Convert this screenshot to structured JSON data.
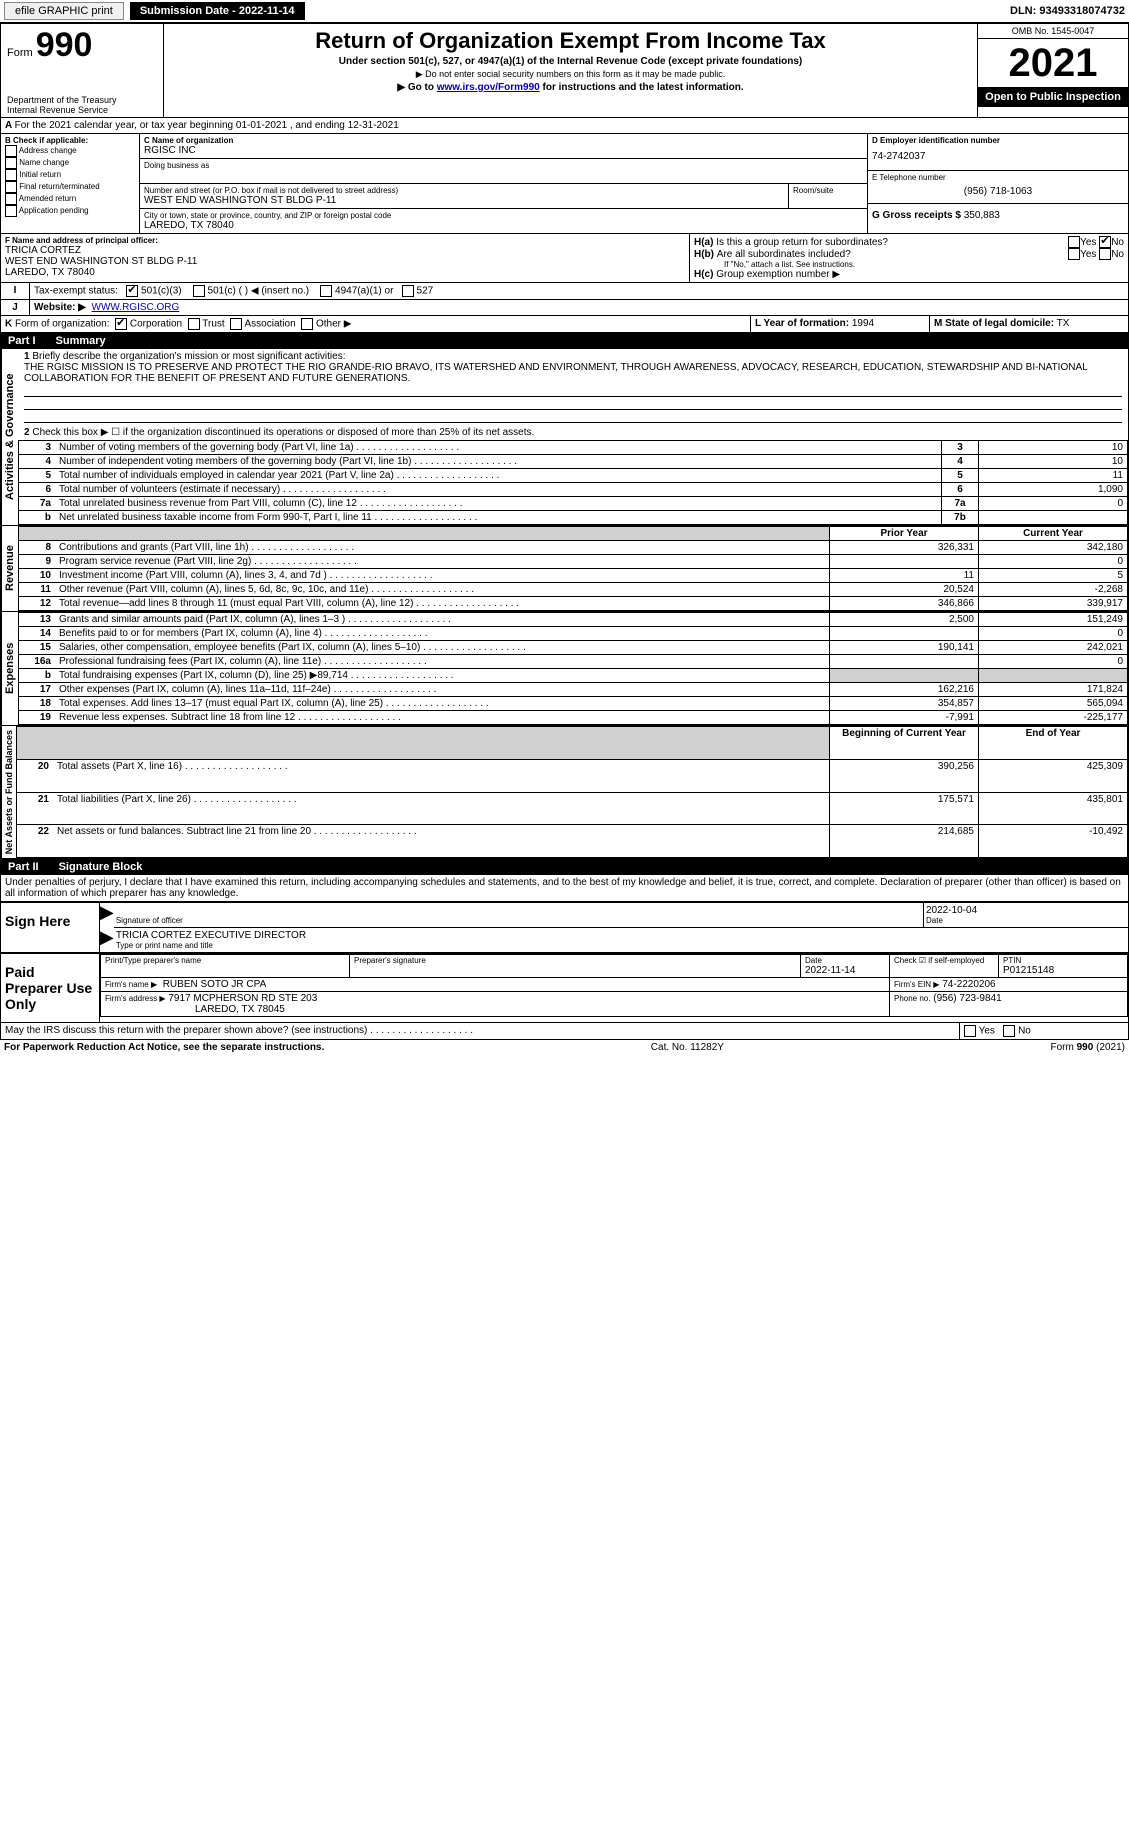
{
  "topbar": {
    "efile": "efile GRAPHIC print",
    "submission_label": "Submission Date - 2022-11-14",
    "dln_label": "DLN: 93493318074732"
  },
  "header": {
    "form_label": "Form",
    "form_num": "990",
    "dept": "Department of the Treasury",
    "irs": "Internal Revenue Service",
    "title": "Return of Organization Exempt From Income Tax",
    "sub1": "Under section 501(c), 527, or 4947(a)(1) of the Internal Revenue Code (except private foundations)",
    "sub2": "▶ Do not enter social security numbers on this form as it may be made public.",
    "sub3_pre": "▶ Go to ",
    "sub3_link": "www.irs.gov/Form990",
    "sub3_post": " for instructions and the latest information.",
    "omb": "OMB No. 1545-0047",
    "year": "2021",
    "open": "Open to Public Inspection"
  },
  "A": {
    "text": "For the 2021 calendar year, or tax year beginning 01-01-2021    , and ending 12-31-2021"
  },
  "B": {
    "label": "B Check if applicable:",
    "opts": [
      "Address change",
      "Name change",
      "Initial return",
      "Final return/terminated",
      "Amended return",
      "Application pending"
    ]
  },
  "C": {
    "name_lbl": "C Name of organization",
    "name": "RGISC INC",
    "dba_lbl": "Doing business as",
    "street_lbl": "Number and street (or P.O. box if mail is not delivered to street address)",
    "room_lbl": "Room/suite",
    "street": "WEST END WASHINGTON ST BLDG P-11",
    "city_lbl": "City or town, state or province, country, and ZIP or foreign postal code",
    "city": "LAREDO, TX  78040"
  },
  "D": {
    "label": "D Employer identification number",
    "val": "74-2742037"
  },
  "E": {
    "label": "E Telephone number",
    "val": "(956) 718-1063"
  },
  "G": {
    "label": "G Gross receipts $",
    "val": "350,883"
  },
  "F": {
    "label": "F Name and address of principal officer:",
    "name": "TRICIA CORTEZ",
    "addr1": "WEST END WASHINGTON ST BLDG P-11",
    "addr2": "LAREDO, TX  78040"
  },
  "H": {
    "a": "Is this a group return for subordinates?",
    "b": "Are all subordinates included?",
    "b_note": "If \"No,\" attach a list. See instructions.",
    "c": "Group exemption number ▶",
    "yes": "Yes",
    "no": "No"
  },
  "I": {
    "label": "Tax-exempt status:",
    "o1": "501(c)(3)",
    "o2": "501(c) (  ) ◀ (insert no.)",
    "o3": "4947(a)(1) or",
    "o4": "527"
  },
  "J": {
    "label": "Website: ▶",
    "val": "WWW.RGISC.ORG"
  },
  "K": {
    "label": "Form of organization:",
    "opts": [
      "Corporation",
      "Trust",
      "Association",
      "Other ▶"
    ]
  },
  "L": {
    "label": "L Year of formation:",
    "val": "1994"
  },
  "M": {
    "label": "M State of legal domicile:",
    "val": "TX"
  },
  "part1": {
    "title": "Part I",
    "name": "Summary",
    "q1": "Briefly describe the organization's mission or most significant activities:",
    "mission": "THE RGISC MISSION IS TO PRESERVE AND PROTECT THE RIO GRANDE-RIO BRAVO, ITS WATERSHED AND ENVIRONMENT, THROUGH AWARENESS, ADVOCACY, RESEARCH, EDUCATION, STEWARDSHIP AND BI-NATIONAL COLLABORATION FOR THE BENEFIT OF PRESENT AND FUTURE GENERATIONS.",
    "q2": "Check this box ▶ ☐  if the organization discontinued its operations or disposed of more than 25% of its net assets.",
    "lines_ag": [
      {
        "n": "3",
        "t": "Number of voting members of the governing body (Part VI, line 1a)",
        "box": "3",
        "v": "10"
      },
      {
        "n": "4",
        "t": "Number of independent voting members of the governing body (Part VI, line 1b)",
        "box": "4",
        "v": "10"
      },
      {
        "n": "5",
        "t": "Total number of individuals employed in calendar year 2021 (Part V, line 2a)",
        "box": "5",
        "v": "11"
      },
      {
        "n": "6",
        "t": "Total number of volunteers (estimate if necessary)",
        "box": "6",
        "v": "1,090"
      },
      {
        "n": "7a",
        "t": "Total unrelated business revenue from Part VIII, column (C), line 12",
        "box": "7a",
        "v": "0"
      },
      {
        "n": "b",
        "t": "Net unrelated business taxable income from Form 990-T, Part I, line 11",
        "box": "7b",
        "v": ""
      }
    ],
    "col_prior": "Prior Year",
    "col_curr": "Current Year",
    "revenue": [
      {
        "n": "8",
        "t": "Contributions and grants (Part VIII, line 1h)",
        "p": "326,331",
        "c": "342,180"
      },
      {
        "n": "9",
        "t": "Program service revenue (Part VIII, line 2g)",
        "p": "",
        "c": "0"
      },
      {
        "n": "10",
        "t": "Investment income (Part VIII, column (A), lines 3, 4, and 7d )",
        "p": "11",
        "c": "5"
      },
      {
        "n": "11",
        "t": "Other revenue (Part VIII, column (A), lines 5, 6d, 8c, 9c, 10c, and 11e)",
        "p": "20,524",
        "c": "-2,268"
      },
      {
        "n": "12",
        "t": "Total revenue—add lines 8 through 11 (must equal Part VIII, column (A), line 12)",
        "p": "346,866",
        "c": "339,917"
      }
    ],
    "expenses": [
      {
        "n": "13",
        "t": "Grants and similar amounts paid (Part IX, column (A), lines 1–3 )",
        "p": "2,500",
        "c": "151,249"
      },
      {
        "n": "14",
        "t": "Benefits paid to or for members (Part IX, column (A), line 4)",
        "p": "",
        "c": "0"
      },
      {
        "n": "15",
        "t": "Salaries, other compensation, employee benefits (Part IX, column (A), lines 5–10)",
        "p": "190,141",
        "c": "242,021"
      },
      {
        "n": "16a",
        "t": "Professional fundraising fees (Part IX, column (A), line 11e)",
        "p": "",
        "c": "0"
      },
      {
        "n": "b",
        "t": "Total fundraising expenses (Part IX, column (D), line 25) ▶89,714",
        "p": "shade",
        "c": "shade"
      },
      {
        "n": "17",
        "t": "Other expenses (Part IX, column (A), lines 11a–11d, 11f–24e)",
        "p": "162,216",
        "c": "171,824"
      },
      {
        "n": "18",
        "t": "Total expenses. Add lines 13–17 (must equal Part IX, column (A), line 25)",
        "p": "354,857",
        "c": "565,094"
      },
      {
        "n": "19",
        "t": "Revenue less expenses. Subtract line 18 from line 12",
        "p": "-7,991",
        "c": "-225,177"
      }
    ],
    "col_begin": "Beginning of Current Year",
    "col_end": "End of Year",
    "netassets": [
      {
        "n": "20",
        "t": "Total assets (Part X, line 16)",
        "p": "390,256",
        "c": "425,309"
      },
      {
        "n": "21",
        "t": "Total liabilities (Part X, line 26)",
        "p": "175,571",
        "c": "435,801"
      },
      {
        "n": "22",
        "t": "Net assets or fund balances. Subtract line 21 from line 20",
        "p": "214,685",
        "c": "-10,492"
      }
    ],
    "side_ag": "Activities & Governance",
    "side_rev": "Revenue",
    "side_exp": "Expenses",
    "side_net": "Net Assets or Fund Balances"
  },
  "part2": {
    "title": "Part II",
    "name": "Signature Block",
    "decl": "Under penalties of perjury, I declare that I have examined this return, including accompanying schedules and statements, and to the best of my knowledge and belief, it is true, correct, and complete. Declaration of preparer (other than officer) is based on all information of which preparer has any knowledge.",
    "sign_here": "Sign Here",
    "sig_officer": "Signature of officer",
    "date": "Date",
    "sig_date": "2022-10-04",
    "officer": "TRICIA CORTEZ  EXECUTIVE DIRECTOR",
    "type_name": "Type or print name and title",
    "paid": "Paid Preparer Use Only",
    "prep_name_lbl": "Print/Type preparer's name",
    "prep_sig_lbl": "Preparer's signature",
    "prep_date_lbl": "Date",
    "prep_date": "2022-11-14",
    "self_emp": "Check ☑ if self-employed",
    "ptin_lbl": "PTIN",
    "ptin": "P01215148",
    "firm_name_lbl": "Firm's name    ▶",
    "firm_name": "RUBEN SOTO JR CPA",
    "firm_ein_lbl": "Firm's EIN ▶",
    "firm_ein": "74-2220206",
    "firm_addr_lbl": "Firm's address ▶",
    "firm_addr1": "7917 MCPHERSON RD STE 203",
    "firm_addr2": "LAREDO, TX  78045",
    "phone_lbl": "Phone no.",
    "phone": "(956) 723-9841",
    "may_irs": "May the IRS discuss this return with the preparer shown above? (see instructions)"
  },
  "footer": {
    "pra": "For Paperwork Reduction Act Notice, see the separate instructions.",
    "cat": "Cat. No. 11282Y",
    "form": "Form 990 (2021)"
  }
}
